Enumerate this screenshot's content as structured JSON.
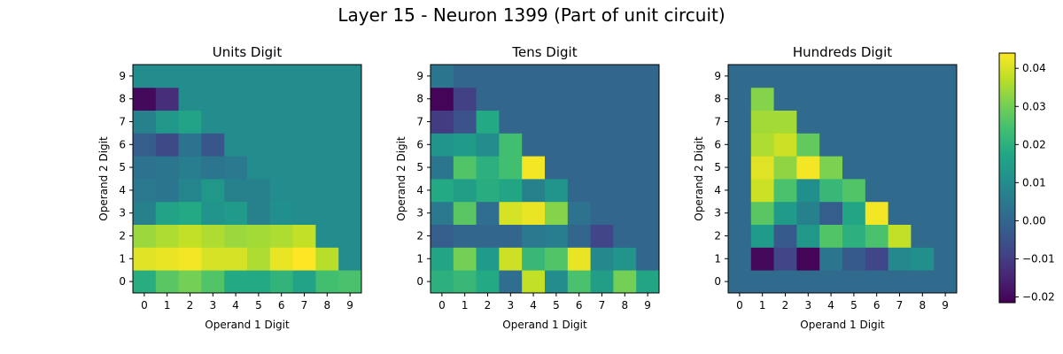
{
  "figure_title": "Layer 15 - Neuron 1399 (Part of unit circuit)",
  "colorbar": {
    "colormap": "viridis",
    "vmin": -0.0215,
    "vmax": 0.044,
    "ticks": [
      -0.02,
      -0.01,
      0.0,
      0.01,
      0.02,
      0.03,
      0.04
    ],
    "tick_labels": [
      "−0.02",
      "−0.01",
      "0.00",
      "0.01",
      "0.02",
      "0.03",
      "0.04"
    ]
  },
  "chart_data": [
    {
      "type": "heatmap",
      "title": "Units Digit",
      "xlabel": "Operand 1 Digit",
      "ylabel": "Operand 2 Digit",
      "x": [
        "0",
        "1",
        "2",
        "3",
        "4",
        "5",
        "6",
        "7",
        "8",
        "9"
      ],
      "y": [
        "0",
        "1",
        "2",
        "3",
        "4",
        "5",
        "6",
        "7",
        "8",
        "9"
      ],
      "values": [
        [
          0.019,
          0.027,
          0.03,
          0.026,
          0.018,
          0.018,
          0.021,
          0.016,
          0.024,
          0.025
        ],
        [
          0.041,
          0.042,
          0.043,
          0.04,
          0.04,
          0.036,
          0.042,
          0.044,
          0.037,
          0.01
        ],
        [
          0.034,
          0.036,
          0.038,
          0.036,
          0.034,
          0.035,
          0.036,
          0.038,
          0.01,
          0.01
        ],
        [
          0.007,
          0.016,
          0.018,
          0.012,
          0.014,
          0.007,
          0.011,
          0.01,
          0.01,
          0.01
        ],
        [
          0.005,
          0.004,
          0.008,
          0.013,
          0.007,
          0.007,
          0.01,
          0.01,
          0.01,
          0.01
        ],
        [
          0.003,
          0.004,
          0.006,
          0.004,
          0.005,
          0.01,
          0.01,
          0.01,
          0.01,
          0.01
        ],
        [
          -0.002,
          -0.007,
          0.003,
          -0.004,
          0.01,
          0.01,
          0.01,
          0.01,
          0.01,
          0.01
        ],
        [
          0.007,
          0.013,
          0.016,
          0.01,
          0.01,
          0.01,
          0.01,
          0.01,
          0.01,
          0.01
        ],
        [
          -0.02,
          -0.013,
          0.01,
          0.01,
          0.01,
          0.01,
          0.01,
          0.01,
          0.01,
          0.01
        ],
        [
          0.01,
          0.01,
          0.01,
          0.01,
          0.01,
          0.01,
          0.01,
          0.01,
          0.01,
          0.01
        ]
      ]
    },
    {
      "type": "heatmap",
      "title": "Tens Digit",
      "xlabel": "Operand 1 Digit",
      "ylabel": "Operand 2 Digit",
      "x": [
        "0",
        "1",
        "2",
        "3",
        "4",
        "5",
        "6",
        "7",
        "8",
        "9"
      ],
      "y": [
        "0",
        "1",
        "2",
        "3",
        "4",
        "5",
        "6",
        "7",
        "8",
        "9"
      ],
      "values": [
        [
          0.02,
          0.022,
          0.018,
          0.002,
          0.038,
          0.01,
          0.025,
          0.015,
          0.03,
          0.017
        ],
        [
          0.017,
          0.03,
          0.014,
          0.039,
          0.022,
          0.026,
          0.042,
          0.009,
          0.012,
          0.0
        ],
        [
          -0.002,
          0.0,
          0.0,
          0.0,
          0.005,
          0.006,
          0.0,
          -0.008,
          0.0,
          0.0
        ],
        [
          0.005,
          0.027,
          0.002,
          0.04,
          0.042,
          0.032,
          0.003,
          0.0,
          0.0,
          0.0
        ],
        [
          0.018,
          0.015,
          0.019,
          0.017,
          0.007,
          0.012,
          0.0,
          0.0,
          0.0,
          0.0
        ],
        [
          0.004,
          0.026,
          0.02,
          0.024,
          0.043,
          0.0,
          0.0,
          0.0,
          0.0,
          0.0
        ],
        [
          0.012,
          0.014,
          0.01,
          0.024,
          0.0,
          0.0,
          0.0,
          0.0,
          0.0,
          0.0
        ],
        [
          -0.01,
          -0.005,
          0.018,
          0.0,
          0.0,
          0.0,
          0.0,
          0.0,
          0.0,
          0.0
        ],
        [
          -0.021,
          -0.009,
          0.0,
          0.0,
          0.0,
          0.0,
          0.0,
          0.0,
          0.0,
          0.0
        ],
        [
          0.004,
          0.0,
          0.0,
          0.0,
          0.0,
          0.0,
          0.0,
          0.0,
          0.0,
          0.0
        ]
      ]
    },
    {
      "type": "heatmap",
      "title": "Hundreds Digit",
      "xlabel": "Operand 1 Digit",
      "ylabel": "Operand 2 Digit",
      "x": [
        "0",
        "1",
        "2",
        "3",
        "4",
        "5",
        "6",
        "7",
        "8",
        "9"
      ],
      "y": [
        "0",
        "1",
        "2",
        "3",
        "4",
        "5",
        "6",
        "7",
        "8",
        "9"
      ],
      "values": [
        [
          0.001,
          0.001,
          0.001,
          0.001,
          0.001,
          0.001,
          0.001,
          0.001,
          0.001,
          0.001
        ],
        [
          0.001,
          -0.02,
          -0.008,
          -0.021,
          0.004,
          -0.003,
          -0.008,
          0.009,
          0.011,
          0.001
        ],
        [
          0.001,
          0.014,
          -0.003,
          0.013,
          0.026,
          0.02,
          0.025,
          0.038,
          0.001,
          0.001
        ],
        [
          0.001,
          0.027,
          0.014,
          0.007,
          -0.002,
          0.017,
          0.043,
          0.001,
          0.001,
          0.001
        ],
        [
          0.001,
          0.039,
          0.025,
          0.011,
          0.022,
          0.026,
          0.001,
          0.001,
          0.001,
          0.001
        ],
        [
          0.001,
          0.041,
          0.033,
          0.043,
          0.031,
          0.001,
          0.001,
          0.001,
          0.001,
          0.001
        ],
        [
          0.001,
          0.036,
          0.039,
          0.028,
          0.001,
          0.001,
          0.001,
          0.001,
          0.001,
          0.001
        ],
        [
          0.001,
          0.035,
          0.035,
          0.001,
          0.001,
          0.001,
          0.001,
          0.001,
          0.001,
          0.001
        ],
        [
          0.001,
          0.032,
          0.001,
          0.001,
          0.001,
          0.001,
          0.001,
          0.001,
          0.001,
          0.001
        ],
        [
          0.001,
          0.001,
          0.001,
          0.001,
          0.001,
          0.001,
          0.001,
          0.001,
          0.001,
          0.001
        ]
      ]
    }
  ]
}
